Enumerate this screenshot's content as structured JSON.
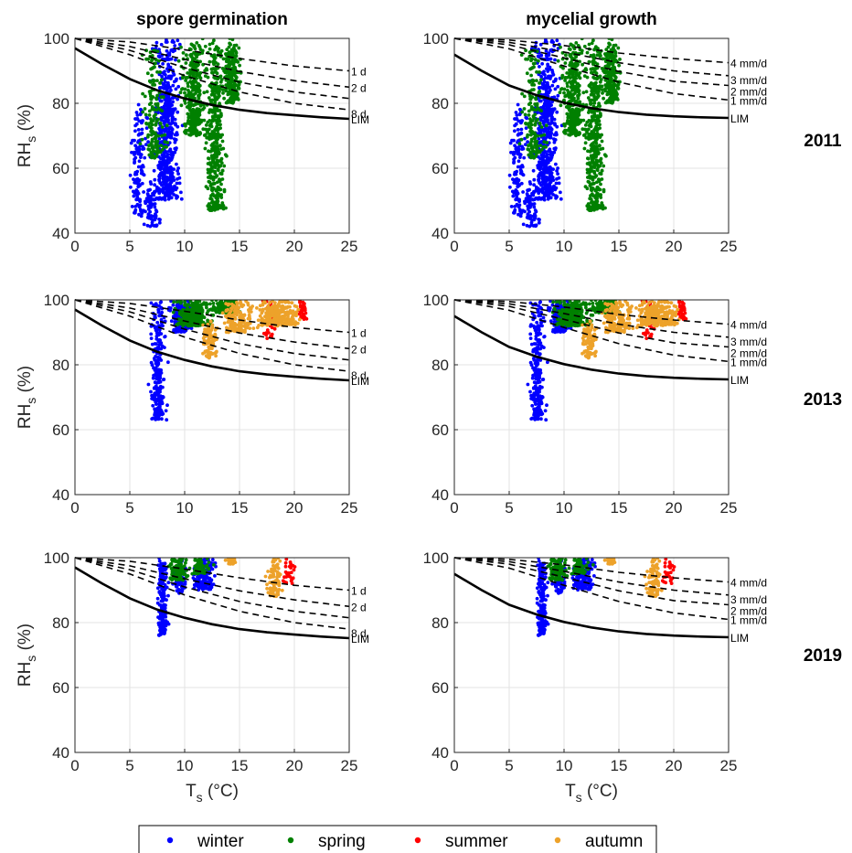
{
  "colors": {
    "winter": "#0000ff",
    "spring": "#008000",
    "summer": "#ff0000",
    "autumn": "#eda22a",
    "curve": "#000000",
    "grid": "#e3e3e3"
  },
  "columns": [
    "spore germination",
    "mycelial growth"
  ],
  "rows": [
    "2011",
    "2013",
    "2019"
  ],
  "axis_labels": {
    "y_main": "RH",
    "y_sub": "s",
    "y_unit": " (%)",
    "x_main": "T",
    "x_sub": "s",
    "x_unit": " (°C)"
  },
  "legend": {
    "placement": "bottom-center",
    "items": [
      {
        "key": "winter",
        "label": "winter"
      },
      {
        "key": "spring",
        "label": "spring"
      },
      {
        "key": "summer",
        "label": "summer"
      },
      {
        "key": "autumn",
        "label": "autumn"
      }
    ]
  },
  "chart_data": [
    {
      "type": "scatter",
      "column": "spore germination",
      "xlim": [
        0,
        25
      ],
      "ylim": [
        40,
        100
      ],
      "xticks": [
        0,
        5,
        10,
        15,
        20,
        25
      ],
      "yticks": [
        40,
        60,
        80,
        100
      ],
      "grid": true,
      "curves": [
        {
          "label": "1 d",
          "style": "dashed",
          "points": [
            [
              0,
              100
            ],
            [
              5,
              98.9
            ],
            [
              10,
              96.5
            ],
            [
              15,
              93.8
            ],
            [
              20,
              91.5
            ],
            [
              25,
              90
            ]
          ]
        },
        {
          "label": "2 d",
          "style": "dashed",
          "points": [
            [
              0,
              100
            ],
            [
              5,
              97.5
            ],
            [
              10,
              93.5
            ],
            [
              15,
              89.8
            ],
            [
              20,
              87
            ],
            [
              25,
              85
            ]
          ]
        },
        {
          "label": "",
          "style": "dashed",
          "points": [
            [
              0,
              100
            ],
            [
              5,
              96.3
            ],
            [
              10,
              91
            ],
            [
              15,
              86.5
            ],
            [
              20,
              83.5
            ],
            [
              25,
              81.5
            ]
          ]
        },
        {
          "label": "8 d",
          "style": "dashed",
          "points": [
            [
              0,
              100
            ],
            [
              5,
              95
            ],
            [
              10,
              88.5
            ],
            [
              15,
              83.5
            ],
            [
              20,
              80
            ],
            [
              25,
              78
            ]
          ]
        },
        {
          "label": "LIM",
          "style": "solid",
          "points": [
            [
              0,
              97
            ],
            [
              2.5,
              92
            ],
            [
              5,
              87.5
            ],
            [
              7.5,
              84
            ],
            [
              10,
              81.5
            ],
            [
              12.5,
              79.5
            ],
            [
              15,
              78
            ],
            [
              17.5,
              77
            ],
            [
              20,
              76.3
            ],
            [
              22.5,
              75.7
            ],
            [
              25,
              75.2
            ]
          ]
        }
      ]
    },
    {
      "type": "scatter",
      "column": "mycelial growth",
      "xlim": [
        0,
        25
      ],
      "ylim": [
        40,
        100
      ],
      "xticks": [
        0,
        5,
        10,
        15,
        20,
        25
      ],
      "yticks": [
        40,
        60,
        80,
        100
      ],
      "grid": true,
      "curves": [
        {
          "label": "4 mm/d",
          "style": "dashed",
          "points": [
            [
              0,
              100
            ],
            [
              5,
              99.5
            ],
            [
              10,
              97.8
            ],
            [
              15,
              95.5
            ],
            [
              20,
              93.8
            ],
            [
              25,
              92.5
            ]
          ]
        },
        {
          "label": "3 mm/d",
          "style": "dashed",
          "points": [
            [
              0,
              100
            ],
            [
              5,
              98.8
            ],
            [
              10,
              95.8
            ],
            [
              15,
              92.5
            ],
            [
              20,
              90
            ],
            [
              25,
              88.5
            ]
          ]
        },
        {
          "label": "2 mm/d",
          "style": "dashed",
          "points": [
            [
              0,
              100
            ],
            [
              5,
              98
            ],
            [
              10,
              94
            ],
            [
              15,
              89.8
            ],
            [
              20,
              86.8
            ],
            [
              25,
              85.5
            ]
          ]
        },
        {
          "label": "1 mm/d",
          "style": "dashed",
          "points": [
            [
              0,
              100
            ],
            [
              5,
              96.8
            ],
            [
              10,
              91.5
            ],
            [
              15,
              86.5
            ],
            [
              20,
              83
            ],
            [
              25,
              81
            ]
          ]
        },
        {
          "label": "LIM",
          "style": "solid",
          "points": [
            [
              0,
              95
            ],
            [
              2.5,
              90
            ],
            [
              5,
              85.5
            ],
            [
              7.5,
              82.5
            ],
            [
              10,
              80.2
            ],
            [
              12.5,
              78.5
            ],
            [
              15,
              77.3
            ],
            [
              17.5,
              76.5
            ],
            [
              20,
              76
            ],
            [
              22.5,
              75.7
            ],
            [
              25,
              75.5
            ]
          ]
        }
      ]
    }
  ],
  "clusters": [
    [
      {
        "s": "winter",
        "xc": 8.3,
        "xs": 1.0,
        "ymin": 50,
        "ymax": 100,
        "n": 520
      },
      {
        "s": "winter",
        "xc": 5.8,
        "xs": 0.5,
        "ymin": 45,
        "ymax": 80,
        "n": 130
      },
      {
        "s": "winter",
        "xc": 7.0,
        "xs": 0.6,
        "ymin": 42,
        "ymax": 55,
        "n": 70
      },
      {
        "s": "spring",
        "xc": 7.2,
        "xs": 0.8,
        "ymin": 63,
        "ymax": 98,
        "n": 160
      },
      {
        "s": "spring",
        "xc": 10.8,
        "xs": 0.8,
        "ymin": 70,
        "ymax": 100,
        "n": 330
      },
      {
        "s": "spring",
        "xc": 12.8,
        "xs": 0.7,
        "ymin": 47,
        "ymax": 100,
        "n": 400
      },
      {
        "s": "spring",
        "xc": 14.3,
        "xs": 0.6,
        "ymin": 80,
        "ymax": 100,
        "n": 220
      }
    ],
    [
      {
        "s": "winter",
        "xc": 7.6,
        "xs": 0.5,
        "ymin": 63,
        "ymax": 100,
        "n": 240
      },
      {
        "s": "winter",
        "xc": 9.6,
        "xs": 0.8,
        "ymin": 90,
        "ymax": 100,
        "n": 160
      },
      {
        "s": "spring",
        "xc": 10.8,
        "xs": 1.2,
        "ymin": 92,
        "ymax": 100,
        "n": 300
      },
      {
        "s": "spring",
        "xc": 13.8,
        "xs": 1.0,
        "ymin": 96,
        "ymax": 100,
        "n": 140
      },
      {
        "s": "summer",
        "xc": 17.8,
        "xs": 0.5,
        "ymin": 88,
        "ymax": 100,
        "n": 40
      },
      {
        "s": "summer",
        "xc": 20.7,
        "xs": 0.4,
        "ymin": 94,
        "ymax": 100,
        "n": 40
      },
      {
        "s": "autumn",
        "xc": 12.3,
        "xs": 0.5,
        "ymin": 82,
        "ymax": 94,
        "n": 90
      },
      {
        "s": "autumn",
        "xc": 14.8,
        "xs": 1.2,
        "ymin": 90,
        "ymax": 100,
        "n": 160
      },
      {
        "s": "autumn",
        "xc": 18.5,
        "xs": 1.6,
        "ymin": 92,
        "ymax": 100,
        "n": 250
      }
    ],
    [
      {
        "s": "winter",
        "xc": 8.0,
        "xs": 0.4,
        "ymin": 76,
        "ymax": 100,
        "n": 200
      },
      {
        "s": "winter",
        "xc": 11.8,
        "xs": 0.8,
        "ymin": 90,
        "ymax": 100,
        "n": 150
      },
      {
        "s": "winter",
        "xc": 9.5,
        "xs": 0.5,
        "ymin": 89,
        "ymax": 100,
        "n": 70
      },
      {
        "s": "spring",
        "xc": 9.4,
        "xs": 0.6,
        "ymin": 93,
        "ymax": 100,
        "n": 110
      },
      {
        "s": "spring",
        "xc": 11.5,
        "xs": 0.7,
        "ymin": 95,
        "ymax": 100,
        "n": 70
      },
      {
        "s": "autumn",
        "xc": 14.2,
        "xs": 0.4,
        "ymin": 98,
        "ymax": 100,
        "n": 25
      },
      {
        "s": "autumn",
        "xc": 18.2,
        "xs": 0.5,
        "ymin": 88,
        "ymax": 100,
        "n": 90
      },
      {
        "s": "summer",
        "xc": 19.6,
        "xs": 0.5,
        "ymin": 92,
        "ymax": 100,
        "n": 30
      }
    ]
  ]
}
